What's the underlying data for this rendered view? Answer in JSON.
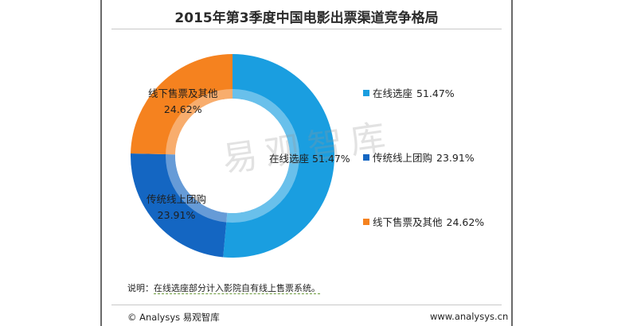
{
  "chart_data": {
    "type": "pie",
    "title": "2015年第3季度中国电影出票渠道竞争格局",
    "categories": [
      "在线选座",
      "传统线上团购",
      "线下售票及其他"
    ],
    "values": [
      51.47,
      23.91,
      24.62
    ],
    "value_labels": [
      "51.47%",
      "23.91%",
      "24.62%"
    ],
    "colors": [
      "#1a9ee0",
      "#1466c2",
      "#f5821f"
    ],
    "donut": true,
    "legend_position": "right"
  },
  "slice_labels": {
    "online": {
      "name": "在线选座",
      "value": "51.47%"
    },
    "groupon": {
      "name": "传统线上团购",
      "value": "23.91%"
    },
    "offline": {
      "name": "线下售票及其他",
      "value": "24.62%"
    }
  },
  "legend": [
    {
      "label": "在线选座",
      "value": "51.47%",
      "color": "#1a9ee0"
    },
    {
      "label": "传统线上团购",
      "value": "23.91%",
      "color": "#1466c2"
    },
    {
      "label": "线下售票及其他",
      "value": "24.62%",
      "color": "#f5821f"
    }
  ],
  "watermark": "易观智库",
  "note": {
    "prefix": "说明：",
    "text": "在线选座部分计入影院自有线上售票系统。"
  },
  "footer": {
    "left": "© Analysys 易观智库",
    "right": "www.analysys.cn"
  }
}
